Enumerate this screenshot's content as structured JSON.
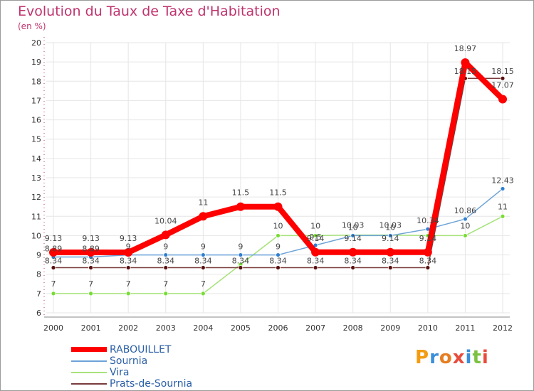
{
  "title": "Evolution du Taux de Taxe d'Habitation",
  "unit_label": "(en %)",
  "logo_text": "Proxiti",
  "chart_data": {
    "type": "line",
    "title": "Evolution du Taux de Taxe d'Habitation",
    "ylabel": "(en %)",
    "xlabel": "",
    "ylim": [
      6,
      20
    ],
    "yticks": [
      6,
      7,
      8,
      9,
      10,
      11,
      12,
      13,
      14,
      15,
      16,
      17,
      18,
      19,
      20
    ],
    "categories": [
      "2000",
      "2001",
      "2002",
      "2003",
      "2004",
      "2005",
      "2006",
      "2007",
      "2008",
      "2009",
      "2010",
      "2011",
      "2012"
    ],
    "series": [
      {
        "name": "RABOUILLET",
        "color": "#ff0000",
        "values": [
          9.13,
          9.13,
          9.13,
          10.04,
          11,
          11.5,
          11.5,
          9.14,
          9.14,
          9.14,
          9.14,
          18.97,
          17.07
        ],
        "labels": [
          "9.13",
          "9.13",
          "9.13",
          "10.04",
          "11",
          "11.5",
          "11.5",
          "9.14",
          "9.14",
          "9.14",
          "9.14",
          "18.97",
          "17.07"
        ]
      },
      {
        "name": "Sournia",
        "color": "#2f7fd0",
        "values": [
          8.89,
          8.89,
          9,
          9,
          9,
          9,
          9,
          9.5,
          10,
          10,
          10.34,
          10.86,
          12.43
        ],
        "labels": [
          "8.89",
          "8.89",
          "9",
          "9",
          "9",
          "9",
          "9",
          "9.5",
          "10",
          "10",
          "10.34",
          "10.86",
          "12.43"
        ]
      },
      {
        "name": "Vira",
        "color": "#77dd33",
        "values": [
          7,
          7,
          7,
          7,
          7,
          8.5,
          10,
          10,
          10.03,
          10.03,
          10,
          10,
          11
        ],
        "labels": [
          "7",
          "7",
          "7",
          "7",
          "7",
          "",
          "10",
          "10",
          "10.03",
          "10.03",
          "",
          "10",
          "11"
        ]
      },
      {
        "name": "Prats-de-Sournia",
        "color": "#6b1a1a",
        "values": [
          8.34,
          8.34,
          8.34,
          8.34,
          8.34,
          8.34,
          8.34,
          8.34,
          8.34,
          8.34,
          8.34,
          18.15,
          18.15
        ],
        "labels": [
          "8.34",
          "8.34",
          "8.34",
          "8.34",
          "8.34",
          "8.34",
          "8.34",
          "8.34",
          "8.34",
          "8.34",
          "8.34",
          "18.15",
          "18.15"
        ]
      }
    ],
    "legend": [
      "RABOUILLET",
      "Sournia",
      "Vira",
      "Prats-de-Sournia"
    ],
    "legend_position": "bottom-left"
  }
}
